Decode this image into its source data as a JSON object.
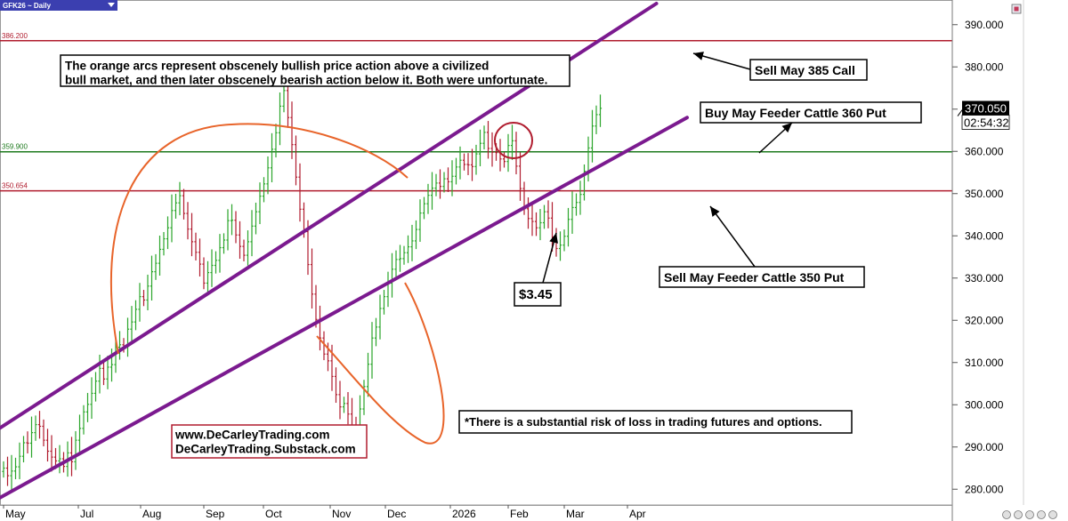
{
  "chart_data": {
    "type": "bar",
    "symbol": "GFK26 ~ Daily",
    "x_labels": [
      "May",
      "Jul",
      "Aug",
      "Sep",
      "Oct",
      "Nov",
      "Dec",
      "2026",
      "Feb",
      "Mar",
      "Apr"
    ],
    "y_ticks": [
      280,
      290,
      300,
      310,
      320,
      330,
      340,
      350,
      360,
      370,
      380,
      390
    ],
    "y_tick_labels": [
      "280.000",
      "290.000",
      "300.000",
      "310.000",
      "320.000",
      "330.000",
      "340.000",
      "350.000",
      "360.000",
      "370.000",
      "380.000",
      "390.000"
    ],
    "ylim": [
      275,
      398
    ],
    "last_price": 370.05,
    "last_price_label": "370.050",
    "countdown": "02:54:32",
    "levels": [
      {
        "value": 386.2,
        "label": "386.200",
        "color": "#b01c2e"
      },
      {
        "value": 359.9,
        "label": "359.900",
        "color": "#1e7a1e"
      },
      {
        "value": 350.654,
        "label": "350.654",
        "color": "#b01c2e"
      }
    ],
    "trend_channel": {
      "color": "#7b1a8f",
      "upper": {
        "from": [
          0,
          294.5
        ],
        "to": [
          163,
          395
        ]
      },
      "lower": {
        "from": [
          0,
          278
        ],
        "to": [
          168,
          368
        ]
      }
    },
    "closes": [
      285.0,
      283.2,
      284.3,
      285.3,
      287.8,
      291.0,
      290.9,
      293.4,
      295.3,
      294.9,
      291.6,
      289.0,
      287.6,
      286.7,
      287.2,
      285.4,
      288.6,
      286.5,
      291.6,
      294.4,
      298.3,
      300.1,
      302.7,
      305.6,
      308.6,
      306.1,
      308.9,
      309.5,
      313.6,
      314.2,
      313.8,
      317.9,
      319.6,
      322.6,
      325.6,
      324.8,
      328.1,
      331.5,
      333.5,
      336.8,
      339.3,
      341.9,
      346.0,
      347.8,
      349.5,
      345.3,
      341.6,
      338.6,
      336.1,
      333.3,
      328.8,
      331.3,
      333.0,
      334.2,
      337.2,
      339.0,
      343.6,
      343.7,
      340.2,
      337.5,
      335.4,
      338.6,
      342.3,
      345.7,
      349.4,
      352.3,
      356.1,
      360.5,
      364.4,
      370.7,
      374.4,
      368.0,
      361.6,
      353.9,
      346.3,
      341.0,
      333.2,
      326.2,
      320.2,
      315.8,
      312.0,
      310.4,
      306.7,
      302.4,
      299.5,
      300.3,
      297.8,
      295.0,
      292.6,
      299.0,
      304.3,
      309.6,
      315.8,
      318.4,
      322.8,
      325.6,
      328.8,
      332.1,
      334.4,
      334.6,
      336.0,
      337.4,
      338.8,
      341.5,
      345.4,
      347.6,
      349.6,
      351.3,
      352.5,
      351.7,
      353.5,
      352.8,
      354.1,
      356.3,
      357.9,
      356.9,
      356.8,
      356.4,
      359.4,
      361.9,
      364.5,
      360.7,
      359.8,
      359.7,
      358.2,
      357.6,
      361.4,
      362.5,
      356.5,
      351.2,
      346.4,
      344.1,
      343.4,
      341.9,
      343.1,
      345.7,
      344.2,
      339.7,
      337.0,
      337.8,
      339.9,
      343.9,
      346.7,
      347.9,
      349.8,
      355.3,
      360.8,
      366.0,
      368.7,
      370.2
    ],
    "annotations": [
      {
        "name": "annotation-orange-arcs",
        "text": [
          "The orange arcs represent obscenely bullish price action above a civilized",
          "bull market, and then later obscenely bearish action below it. Both were unfortunate."
        ],
        "frame": "#000000"
      },
      {
        "name": "annotation-sell-385-call",
        "text": [
          "Sell May 385 Call"
        ],
        "frame": "#000000"
      },
      {
        "name": "annotation-buy-360-put",
        "text": [
          "Buy May Feeder Cattle 360 Put"
        ],
        "frame": "#000000"
      },
      {
        "name": "annotation-sell-350-put",
        "text": [
          "Sell May Feeder Cattle 350 Put"
        ],
        "frame": "#000000"
      },
      {
        "name": "annotation-premium",
        "text": [
          "$3.45"
        ],
        "frame": "#000000"
      },
      {
        "name": "annotation-website",
        "text": [
          "www.DeCarleyTrading.com",
          "DeCarleyTrading.Substack.com"
        ],
        "frame": "#b01c2e"
      },
      {
        "name": "annotation-risk-disclaimer",
        "text": [
          "*There is a substantial risk of loss in trading futures and options."
        ],
        "frame": "#000000"
      }
    ],
    "bull_color": "#2aa52a",
    "bear_color": "#b01c2e",
    "arc_color": "#e8642a"
  }
}
